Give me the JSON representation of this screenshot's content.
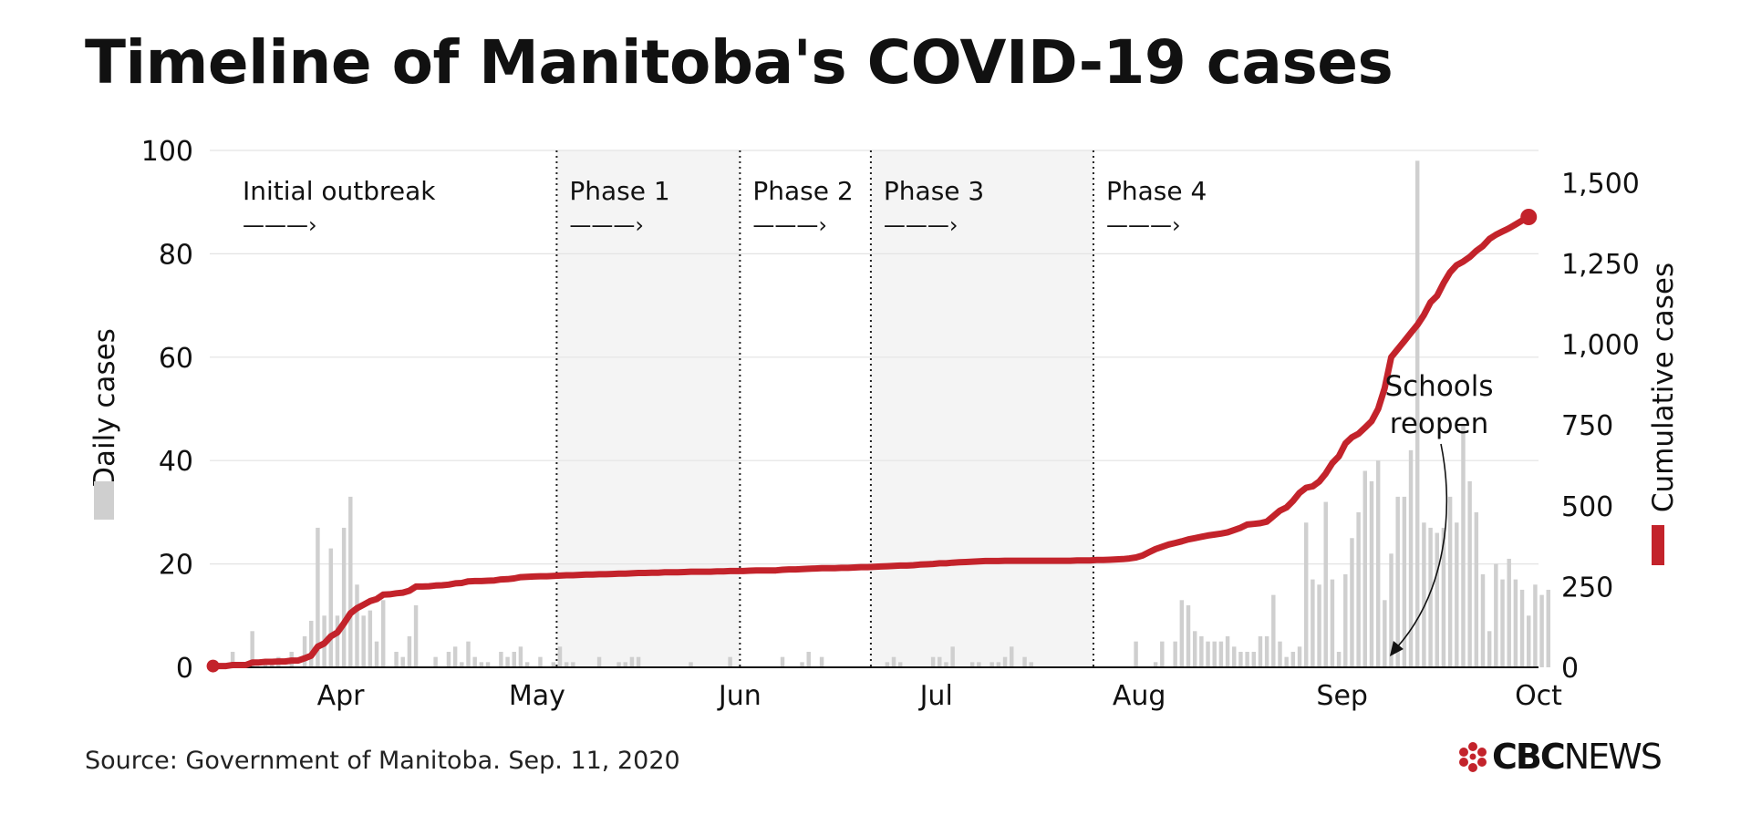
{
  "title": "Timeline of Manitoba's COVID-19 cases",
  "source": "Source: Government of Manitoba. Sep. 11, 2020",
  "logo": {
    "brand": "CBC",
    "product": "NEWS"
  },
  "colors": {
    "line": "#c3232b",
    "bar": "#cfcfcf",
    "phase_band": "#f4f4f4",
    "grid": "#e3e3e3"
  },
  "chart_data": {
    "type": "bar+line",
    "left_axis": {
      "label": "Daily cases",
      "min": 0,
      "max": 100,
      "ticks": [
        0,
        20,
        40,
        60,
        80,
        100
      ]
    },
    "right_axis": {
      "label": "Cumulative cases",
      "min": 0,
      "max": 1600,
      "ticks": [
        0,
        250,
        500,
        750,
        1000,
        1250,
        1500
      ],
      "tick_labels": [
        "0",
        "250",
        "500",
        "750",
        "1,000",
        "1,250",
        "1,500"
      ]
    },
    "x_axis": {
      "start": "2020-03-12",
      "end": "2020-10-01",
      "ticks": [
        {
          "date": "2020-04-01",
          "label": "Apr"
        },
        {
          "date": "2020-05-01",
          "label": "May"
        },
        {
          "date": "2020-06-01",
          "label": "Jun"
        },
        {
          "date": "2020-07-01",
          "label": "Jul"
        },
        {
          "date": "2020-08-01",
          "label": "Aug"
        },
        {
          "date": "2020-09-01",
          "label": "Sep"
        },
        {
          "date": "2020-10-01",
          "label": "Oct"
        }
      ]
    },
    "phases": [
      {
        "label": "Initial outbreak",
        "start": "2020-03-12",
        "end": "2020-05-04",
        "shaded": false
      },
      {
        "label": "Phase 1",
        "start": "2020-05-04",
        "end": "2020-06-01",
        "shaded": true
      },
      {
        "label": "Phase 2",
        "start": "2020-06-01",
        "end": "2020-06-21",
        "shaded": false
      },
      {
        "label": "Phase 3",
        "start": "2020-06-21",
        "end": "2020-07-25",
        "shaded": true
      },
      {
        "label": "Phase 4",
        "start": "2020-07-25",
        "end": null,
        "shaded": false
      }
    ],
    "phase_arrow": "———›",
    "annotation": {
      "text": [
        "Schools",
        "reopen"
      ],
      "date": "2020-09-08"
    },
    "daily_cases": {
      "start_date": "2020-03-12",
      "values": [
        1,
        0,
        0,
        3,
        0,
        0,
        7,
        0,
        1,
        1,
        2,
        0,
        3,
        0,
        6,
        9,
        27,
        10,
        23,
        10,
        27,
        33,
        16,
        10,
        11,
        5,
        13,
        0,
        3,
        2,
        6,
        12,
        0,
        0,
        2,
        0,
        3,
        4,
        1,
        5,
        2,
        1,
        1,
        0,
        3,
        2,
        3,
        4,
        1,
        0,
        2,
        0,
        1,
        4,
        1,
        1,
        0,
        0,
        0,
        2,
        0,
        0,
        1,
        1,
        2,
        2,
        0,
        0,
        0,
        0,
        0,
        0,
        0,
        1,
        0,
        0,
        0,
        0,
        0,
        2,
        0,
        0,
        0,
        0,
        0,
        0,
        0,
        2,
        0,
        0,
        1,
        3,
        0,
        2,
        0,
        0,
        0,
        0,
        0,
        0,
        0,
        0,
        0,
        1,
        2,
        1,
        0,
        0,
        0,
        0,
        2,
        2,
        1,
        4,
        0,
        0,
        1,
        1,
        0,
        1,
        1,
        2,
        4,
        0,
        2,
        1,
        0,
        0,
        0,
        0,
        0,
        0,
        0,
        0,
        0,
        0,
        0,
        0,
        0,
        0,
        0,
        5,
        0,
        0,
        1,
        5,
        0,
        5,
        13,
        12,
        7,
        6,
        5,
        5,
        5,
        6,
        4,
        3,
        3,
        3,
        6,
        6,
        14,
        5,
        2,
        3,
        4,
        28,
        17,
        16,
        32,
        17,
        3,
        18,
        25,
        30,
        38,
        36,
        40,
        13,
        22,
        33,
        33,
        42,
        98,
        28,
        27,
        26,
        27,
        33,
        28,
        47,
        36,
        30,
        18,
        7,
        20,
        17,
        21,
        17,
        15,
        10,
        16,
        14,
        15
      ]
    },
    "cumulative_cases": {
      "start_date": "2020-03-12",
      "values": [
        4,
        4,
        4,
        7,
        7,
        7,
        15,
        15,
        17,
        17,
        18,
        18,
        21,
        21,
        28,
        36,
        64,
        74,
        96,
        108,
        136,
        167,
        183,
        194,
        205,
        211,
        225,
        226,
        229,
        231,
        237,
        250,
        250,
        251,
        253,
        254,
        256,
        260,
        261,
        266,
        267,
        267,
        268,
        269,
        272,
        273,
        275,
        279,
        280,
        281,
        282,
        282,
        283,
        284,
        285,
        285,
        286,
        287,
        287,
        288,
        288,
        289,
        290,
        290,
        291,
        292,
        292,
        293,
        293,
        294,
        294,
        294,
        295,
        296,
        296,
        296,
        296,
        297,
        297,
        298,
        298,
        298,
        299,
        300,
        300,
        300,
        300,
        302,
        303,
        303,
        304,
        305,
        306,
        307,
        307,
        307,
        308,
        308,
        309,
        310,
        310,
        311,
        312,
        313,
        314,
        315,
        315,
        316,
        318,
        319,
        320,
        322,
        322,
        324,
        325,
        326,
        327,
        328,
        329,
        329,
        329,
        330,
        330,
        330,
        330,
        330,
        330,
        330,
        330,
        330,
        330,
        330,
        331,
        331,
        331,
        332,
        332,
        333,
        334,
        335,
        337,
        340,
        346,
        356,
        366,
        373,
        380,
        385,
        390,
        396,
        400,
        404,
        408,
        411,
        414,
        418,
        425,
        432,
        442,
        444,
        446,
        451,
        468,
        485,
        495,
        515,
        540,
        556,
        560,
        575,
        600,
        632,
        653,
        693,
        712,
        723,
        742,
        762,
        800,
        864,
        960,
        985,
        1010,
        1035,
        1060,
        1091,
        1130,
        1150,
        1189,
        1223,
        1245,
        1256,
        1270,
        1289,
        1304,
        1326,
        1339,
        1349,
        1359,
        1371,
        1383,
        1394
      ]
    }
  }
}
